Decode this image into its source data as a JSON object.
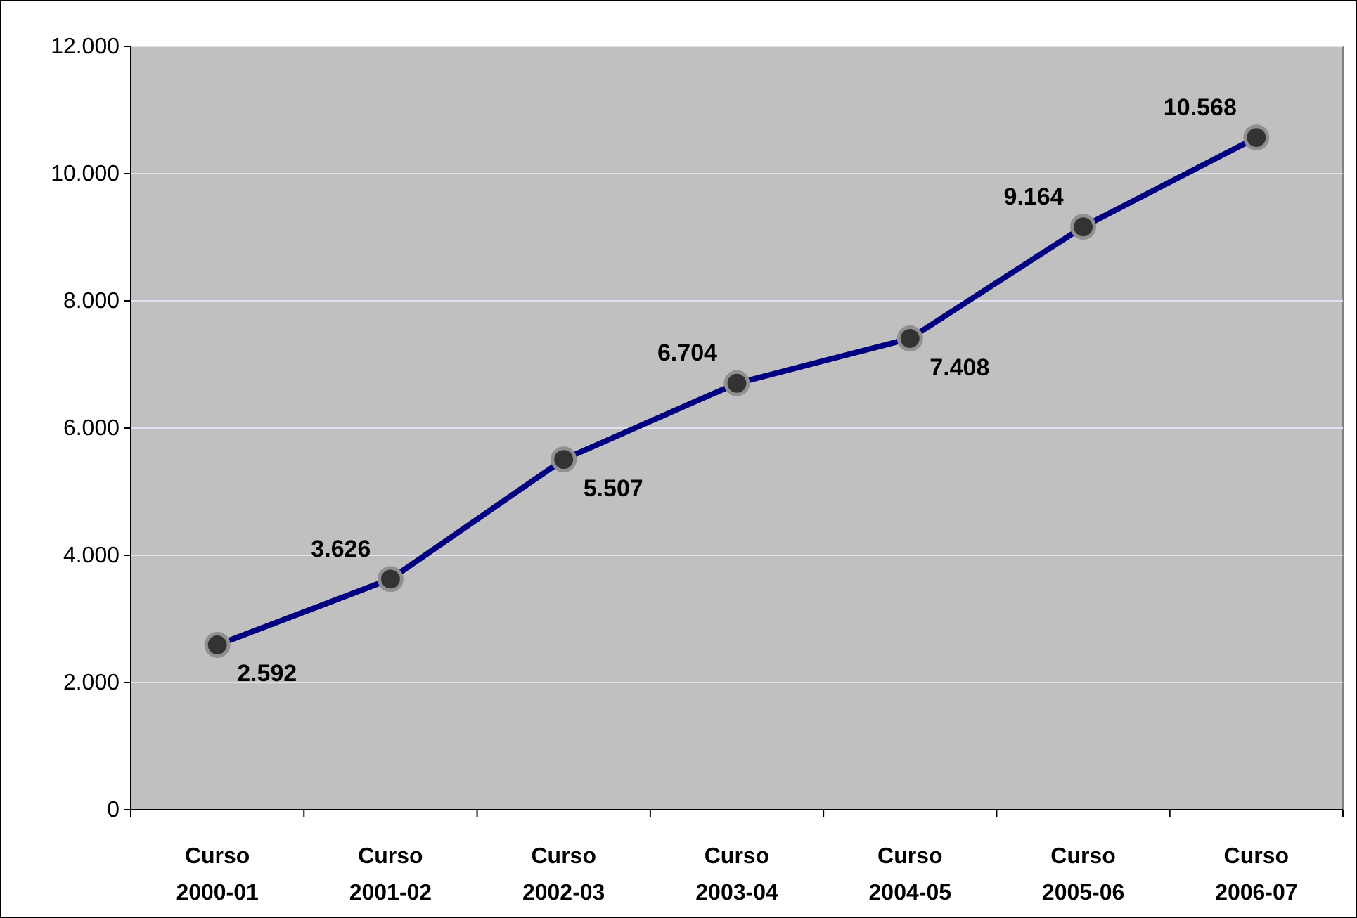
{
  "chart_data": {
    "type": "line",
    "categories": [
      "Curso 2000-01",
      "Curso 2001-02",
      "Curso 2002-03",
      "Curso 2003-04",
      "Curso 2004-05",
      "Curso 2005-06",
      "Curso 2006-07"
    ],
    "series": [
      {
        "color": "#000080",
        "values": [
          2592,
          3626,
          5507,
          6704,
          7408,
          9164,
          10568
        ],
        "value_labels": [
          "2.592",
          "3.626",
          "5.507",
          "6.704",
          "7.408",
          "9.164",
          "10.568"
        ]
      }
    ],
    "ylim": [
      0,
      12000
    ],
    "yticks": [
      {
        "value": 0,
        "label": "0"
      },
      {
        "value": 2000,
        "label": "2.000"
      },
      {
        "value": 4000,
        "label": "4.000"
      },
      {
        "value": 6000,
        "label": "6.000"
      },
      {
        "value": 8000,
        "label": "8.000"
      },
      {
        "value": 10000,
        "label": "10.000"
      },
      {
        "value": 12000,
        "label": "12.000"
      }
    ],
    "grid": "y",
    "marker": "circle",
    "line_style": "solid"
  }
}
